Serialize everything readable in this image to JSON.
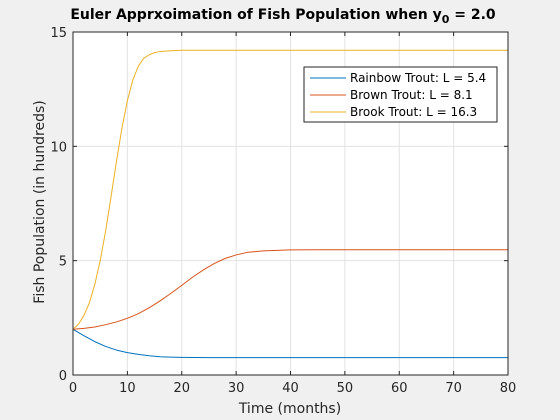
{
  "chart_data": {
    "type": "line",
    "title": "Euler Apprxoimation of Fish Population when y",
    "title_subscript": "0",
    "title_suffix": " = 2.0",
    "xlabel": "Time (months)",
    "ylabel": "Fish Population (in hundreds)",
    "xlim": [
      0,
      80
    ],
    "ylim": [
      0,
      15
    ],
    "xticks": [
      0,
      10,
      20,
      30,
      40,
      50,
      60,
      70,
      80
    ],
    "yticks": [
      0,
      5,
      10,
      15
    ],
    "grid": true,
    "legend_position": "top-right",
    "series": [
      {
        "name": "Rainbow Trout: L = 5.4",
        "color": "#0072BD",
        "x": [
          0,
          2,
          4,
          6,
          8,
          10,
          12,
          14,
          16,
          18,
          20,
          25,
          30,
          40,
          50,
          60,
          70,
          80
        ],
        "values": [
          2.0,
          1.72,
          1.46,
          1.25,
          1.09,
          0.98,
          0.9,
          0.84,
          0.8,
          0.78,
          0.77,
          0.76,
          0.76,
          0.76,
          0.76,
          0.76,
          0.76,
          0.76
        ]
      },
      {
        "name": "Brown Trout: L = 8.1",
        "color": "#D95319",
        "x": [
          0,
          2,
          4,
          6,
          8,
          10,
          12,
          14,
          16,
          18,
          20,
          22,
          24,
          26,
          28,
          30,
          32,
          35,
          40,
          45,
          50,
          60,
          70,
          80
        ],
        "values": [
          2.0,
          2.04,
          2.1,
          2.2,
          2.32,
          2.48,
          2.68,
          2.94,
          3.24,
          3.57,
          3.92,
          4.28,
          4.6,
          4.88,
          5.1,
          5.25,
          5.36,
          5.43,
          5.47,
          5.48,
          5.48,
          5.48,
          5.48,
          5.48
        ]
      },
      {
        "name": "Brook Trout: L = 16.3",
        "color": "#EDB120",
        "x": [
          0,
          1,
          2,
          3,
          4,
          5,
          6,
          7,
          8,
          9,
          10,
          11,
          12,
          13,
          14,
          15,
          16,
          18,
          20,
          25,
          30,
          40,
          50,
          60,
          70,
          80
        ],
        "values": [
          2.0,
          2.22,
          2.6,
          3.15,
          3.95,
          5.0,
          6.3,
          7.8,
          9.35,
          10.8,
          12.0,
          12.9,
          13.5,
          13.85,
          14.0,
          14.1,
          14.15,
          14.18,
          14.2,
          14.2,
          14.2,
          14.2,
          14.2,
          14.2,
          14.2,
          14.2
        ]
      }
    ]
  }
}
